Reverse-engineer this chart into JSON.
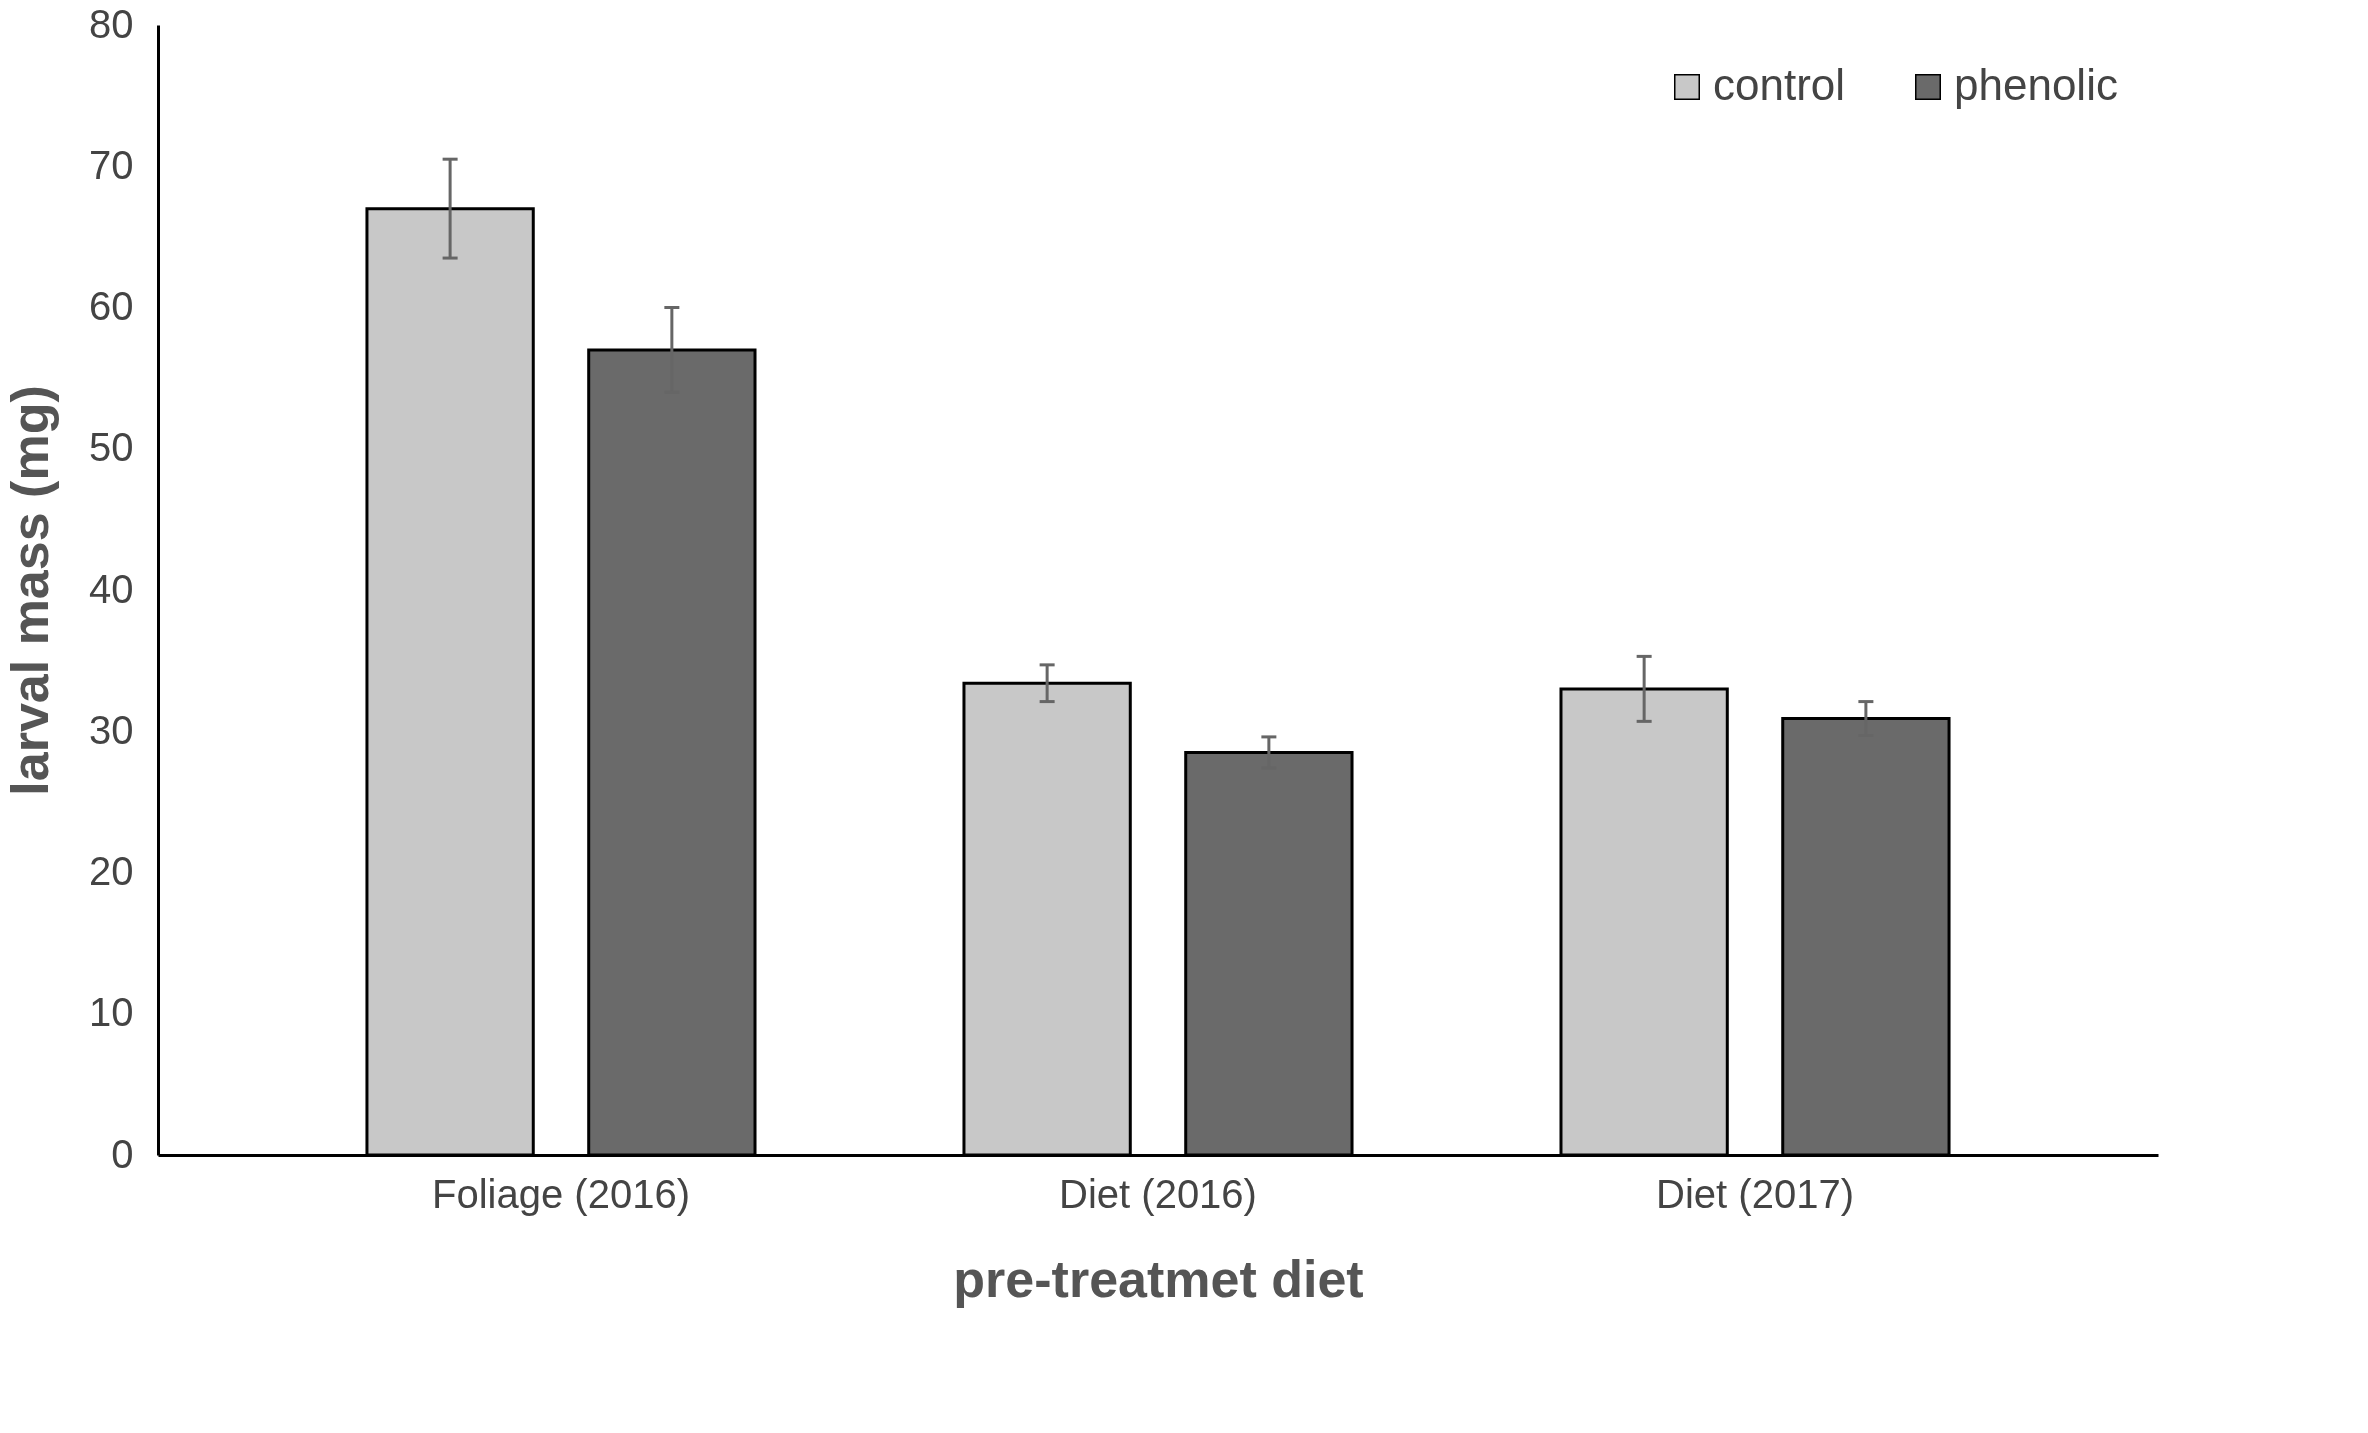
{
  "chart_data": {
    "type": "bar",
    "xlabel": "pre-treatmet diet",
    "ylabel": "larval mass (mg)",
    "categories": [
      "Foliage (2016)",
      "Diet (2016)",
      "Diet (2017)"
    ],
    "series": [
      {
        "name": "control",
        "color": "#c8c8c8",
        "values": [
          67,
          33.4,
          33
        ],
        "errors": [
          3.5,
          1.3,
          2.3
        ]
      },
      {
        "name": "phenolic",
        "color": "#6a6a6a",
        "values": [
          57,
          28.5,
          30.9
        ],
        "errors": [
          3,
          1.1,
          1.2
        ]
      }
    ],
    "ylim": [
      0,
      80
    ],
    "yticks": [
      0,
      10,
      20,
      30,
      40,
      50,
      60,
      70,
      80
    ],
    "grid": false,
    "legend": "top right"
  }
}
